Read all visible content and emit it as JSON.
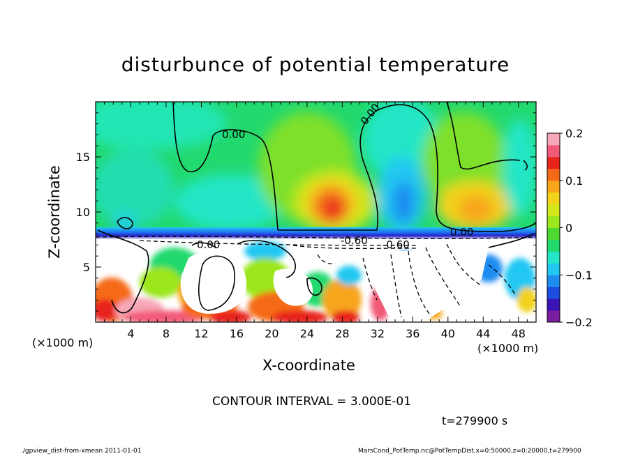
{
  "title": "disturbunce of potential temperature",
  "xlabel": "X-coordinate",
  "zlabel": "Z-coordinate",
  "unit_left": "(×1000 m)",
  "unit_right": "(×1000 m)",
  "contour_interval": "CONTOUR INTERVAL = 3.000E-01",
  "time_label": "t=279900 s",
  "footer_left": "./gpview_dist-from-xmean  2011-01-01",
  "footer_right": "MarsCond_PotTemp.nc@PotTempDist,x=0:50000,z=0:20000,t=279900",
  "chart_data": {
    "type": "heatmap",
    "title": "disturbunce of potential temperature",
    "xlabel": "X-coordinate",
    "ylabel": "Z-coordinate",
    "xlim": [
      0,
      50
    ],
    "ylim": [
      0,
      20
    ],
    "x_ticks": [
      "4",
      "8",
      "12",
      "16",
      "20",
      "24",
      "28",
      "32",
      "36",
      "40",
      "44",
      "48"
    ],
    "y_ticks": [
      "5",
      "10",
      "15"
    ],
    "colorbar": {
      "range": [
        -0.2,
        0.2
      ],
      "ticks": [
        "0.2",
        "0.1",
        "0",
        "−0.1",
        "−0.2"
      ],
      "colors": [
        "#7a1fa2",
        "#3b14b8",
        "#1c4de0",
        "#1f8cf0",
        "#22c8f2",
        "#22e6c6",
        "#22d96e",
        "#4ed832",
        "#9be61c",
        "#d2e81a",
        "#f2d21a",
        "#f7a51a",
        "#f56a18",
        "#e8241a",
        "#f25a78",
        "#f7a8b8"
      ]
    },
    "contour_labels": [
      "0.00",
      "0.00",
      "0.00",
      "-0.60",
      "0.00",
      "-0.60"
    ],
    "contour_interval": 0.3,
    "time_s": 279900,
    "features": [
      {
        "name": "warm anomaly",
        "x": 27.5,
        "z": 10.5,
        "value": 0.13
      },
      {
        "name": "warm anomaly",
        "x": 43.5,
        "z": 10.2,
        "value": 0.08
      },
      {
        "name": "cool anomaly",
        "x": 35.5,
        "z": 11.5,
        "value": -0.1
      },
      {
        "name": "strong negative layer",
        "z": 7.8,
        "value": -0.2
      }
    ]
  }
}
